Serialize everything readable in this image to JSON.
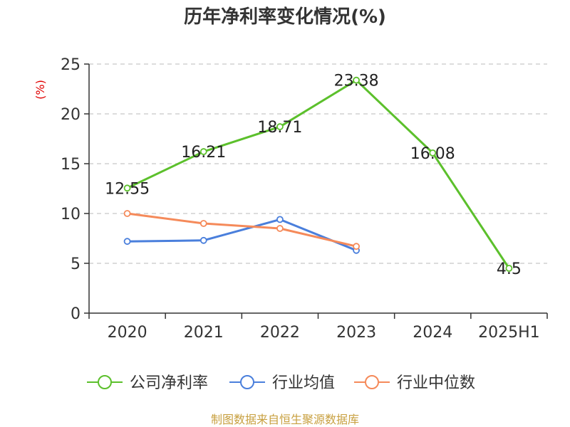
{
  "chart_data": {
    "type": "line",
    "title": "历年净利率变化情况(%)",
    "ylabel": "(%)",
    "categories": [
      "2020",
      "2021",
      "2022",
      "2023",
      "2024",
      "2025H1"
    ],
    "ylim": [
      0,
      25
    ],
    "yticks": [
      0,
      5,
      10,
      15,
      20,
      25
    ],
    "grid": true,
    "legend_position": "bottom",
    "series": [
      {
        "name": "公司净利率",
        "color": "#5cc02c",
        "values": [
          12.55,
          16.21,
          18.71,
          23.38,
          16.08,
          4.5
        ],
        "labels": [
          "12.55",
          "16.21",
          "18.71",
          "23.38",
          "16.08",
          "4.5"
        ]
      },
      {
        "name": "行业均值",
        "color": "#4a7fdc",
        "values": [
          7.2,
          7.3,
          9.4,
          6.3,
          null,
          null
        ]
      },
      {
        "name": "行业中位数",
        "color": "#f58a5a",
        "values": [
          10.0,
          9.0,
          8.5,
          6.7,
          null,
          null
        ]
      }
    ],
    "source": "制图数据来自恒生聚源数据库"
  }
}
